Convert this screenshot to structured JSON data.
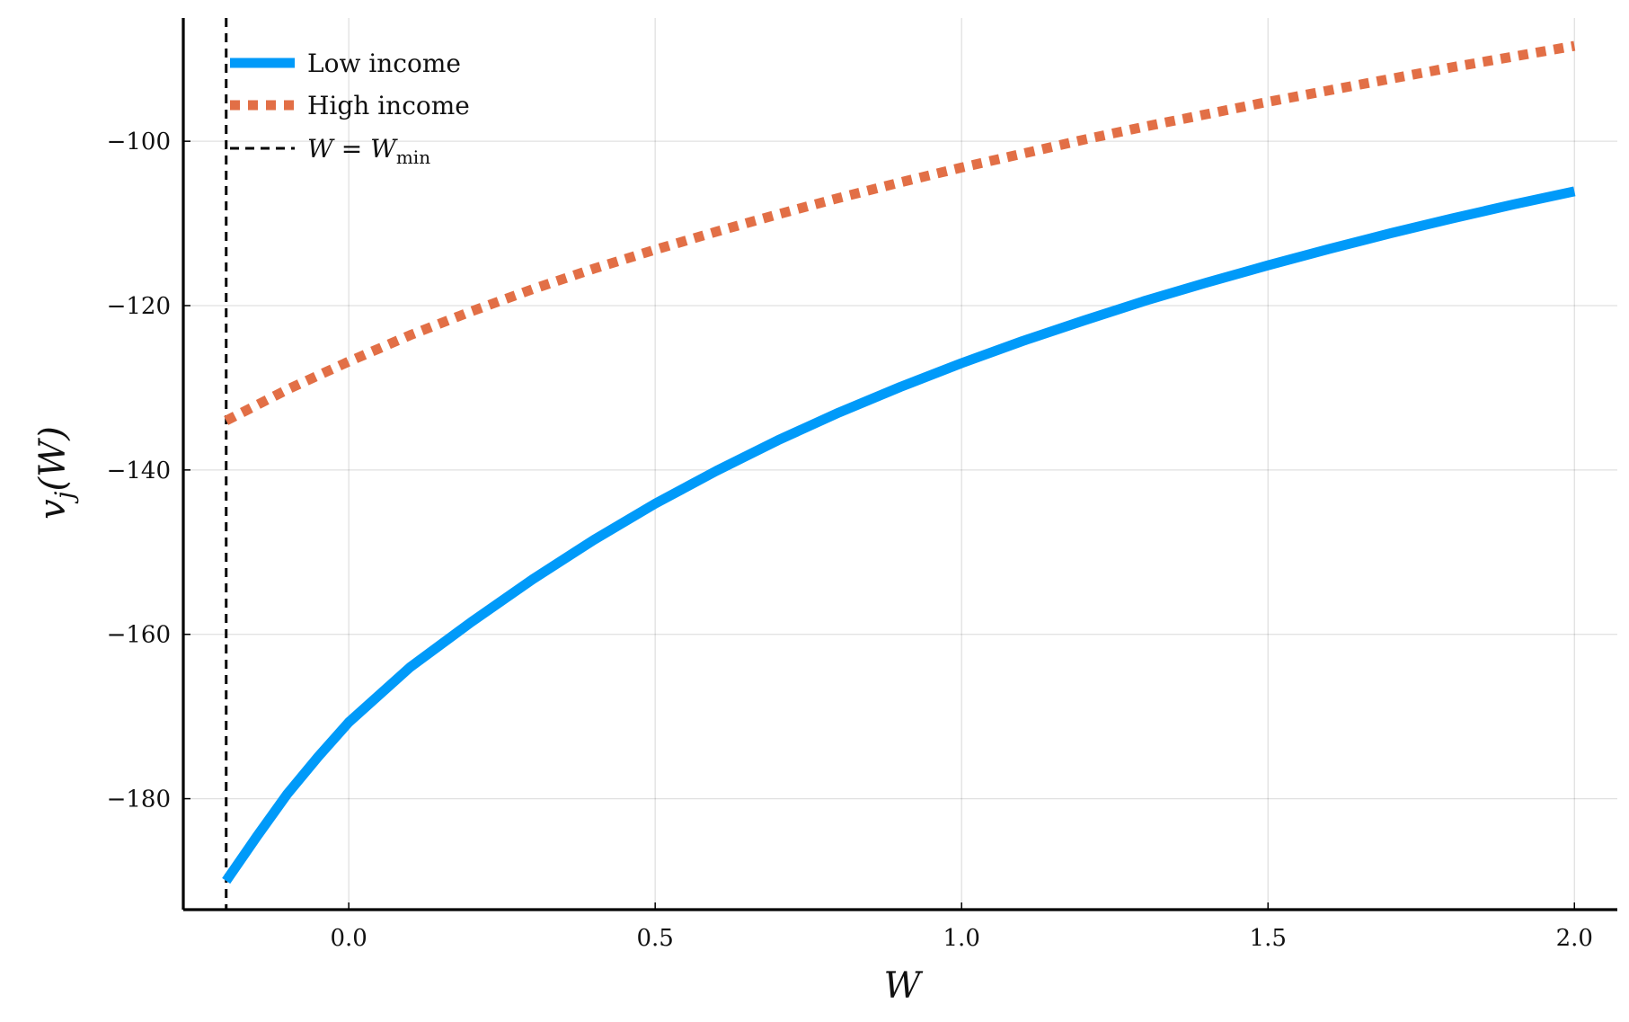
{
  "chart_data": {
    "type": "line",
    "xlabel": "W",
    "ylabel": "v_j(W)",
    "xlim": [
      -0.27,
      2.07
    ],
    "ylim": [
      -193.5,
      -85
    ],
    "xticks": [
      0.0,
      0.5,
      1.0,
      1.5,
      2.0
    ],
    "xtick_labels": [
      "0.0",
      "0.5",
      "1.0",
      "1.5",
      "2.0"
    ],
    "yticks": [
      -180,
      -160,
      -140,
      -120,
      -100
    ],
    "ytick_labels": [
      "−180",
      "−160",
      "−140",
      "−120",
      "−100"
    ],
    "grid": true,
    "legend_position": "top-left",
    "w_min": -0.2,
    "series": [
      {
        "name": "Low income",
        "color": "#009af9",
        "style": "solid",
        "x": [
          -0.2,
          -0.15,
          -0.1,
          -0.05,
          0.0,
          0.1,
          0.2,
          0.3,
          0.4,
          0.5,
          0.6,
          0.7,
          0.8,
          0.9,
          1.0,
          1.1,
          1.2,
          1.3,
          1.4,
          1.5,
          1.6,
          1.7,
          1.8,
          1.9,
          2.0
        ],
        "y": [
          -190.0,
          -184.6,
          -179.4,
          -174.9,
          -170.7,
          -164.0,
          -158.5,
          -153.3,
          -148.5,
          -144.1,
          -140.1,
          -136.4,
          -133.0,
          -129.9,
          -127.0,
          -124.3,
          -121.8,
          -119.4,
          -117.2,
          -115.1,
          -113.1,
          -111.2,
          -109.4,
          -107.7,
          -106.1
        ]
      },
      {
        "name": "High income",
        "color": "#e26f46",
        "style": "dotted",
        "x": [
          -0.2,
          -0.1,
          0.0,
          0.1,
          0.2,
          0.3,
          0.4,
          0.5,
          0.6,
          0.7,
          0.8,
          0.9,
          1.0,
          1.1,
          1.2,
          1.3,
          1.4,
          1.5,
          1.6,
          1.7,
          1.8,
          1.9,
          2.0
        ],
        "y": [
          -134.0,
          -130.2,
          -126.8,
          -123.6,
          -120.7,
          -118.0,
          -115.5,
          -113.2,
          -111.0,
          -108.9,
          -106.9,
          -105.0,
          -103.2,
          -101.5,
          -99.8,
          -98.2,
          -96.7,
          -95.2,
          -93.8,
          -92.4,
          -91.0,
          -89.7,
          -88.4
        ]
      }
    ],
    "vline": {
      "name_prefix": "W",
      "name_equals": "=",
      "name_var": "W",
      "name_sub": "min",
      "x": -0.2,
      "color": "#000000",
      "style": "dashed"
    },
    "axis_label_x": "W",
    "axis_label_y_main": "v",
    "axis_label_y_sub": "j",
    "axis_label_y_arg": "(W)"
  }
}
